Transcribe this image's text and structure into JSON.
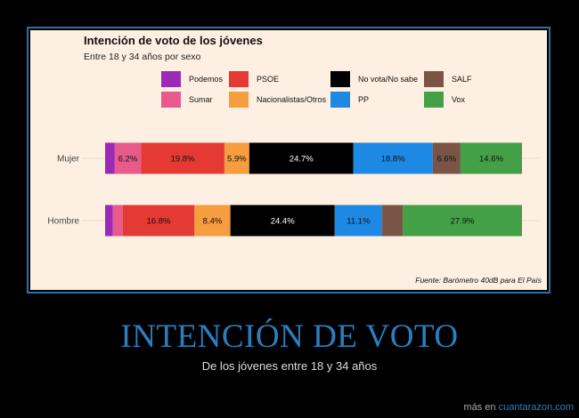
{
  "chart_data": {
    "type": "bar",
    "orientation": "horizontal-stacked",
    "title": "Intención de voto de los jóvenes",
    "subtitle": "Entre 18 y 34 años por sexo",
    "categories": [
      "Mujer",
      "Hombre"
    ],
    "series": [
      {
        "name": "Podemos",
        "color": "#9c2ab6",
        "values": [
          2.3,
          1.8
        ],
        "labels": [
          "",
          ""
        ]
      },
      {
        "name": "Sumar",
        "color": "#e85a8c",
        "values": [
          6.2,
          2.3
        ],
        "labels": [
          "6.2%",
          ""
        ]
      },
      {
        "name": "PSOE",
        "color": "#e53a34",
        "values": [
          19.8,
          16.8
        ],
        "labels": [
          "19.8%",
          "16.8%"
        ]
      },
      {
        "name": "Nacionalistas/Otros",
        "color": "#f69d40",
        "values": [
          5.9,
          8.4
        ],
        "labels": [
          "5.9%",
          "8.4%"
        ]
      },
      {
        "name": "No vota/No sabe",
        "color": "#000000",
        "values": [
          24.7,
          24.4
        ],
        "labels": [
          "24.7%",
          "24.4%"
        ]
      },
      {
        "name": "PP",
        "color": "#1e88e5",
        "values": [
          18.8,
          11.1
        ],
        "labels": [
          "18.8%",
          "11.1%"
        ]
      },
      {
        "name": "SALF",
        "color": "#7a5546",
        "values": [
          6.6,
          4.8
        ],
        "labels": [
          "6.6%",
          ""
        ]
      },
      {
        "name": "Vox",
        "color": "#43a047",
        "values": [
          14.6,
          27.9
        ],
        "labels": [
          "14.6%",
          "27.9%"
        ]
      }
    ],
    "legend_order": [
      "Podemos",
      "PSOE",
      "No vota/No sabe",
      "SALF",
      "Sumar",
      "Nacionalistas/Otros",
      "PP",
      "Vox"
    ],
    "legend_position": "top",
    "source": "Fuente: Barómetro 40dB para El País"
  },
  "page": {
    "headline": "INTENCIÓN DE VOTO",
    "subhead": "De los jóvenes entre 18 y 34 años",
    "footer_prefix": "más en ",
    "footer_link": "cuantarazon.com"
  }
}
